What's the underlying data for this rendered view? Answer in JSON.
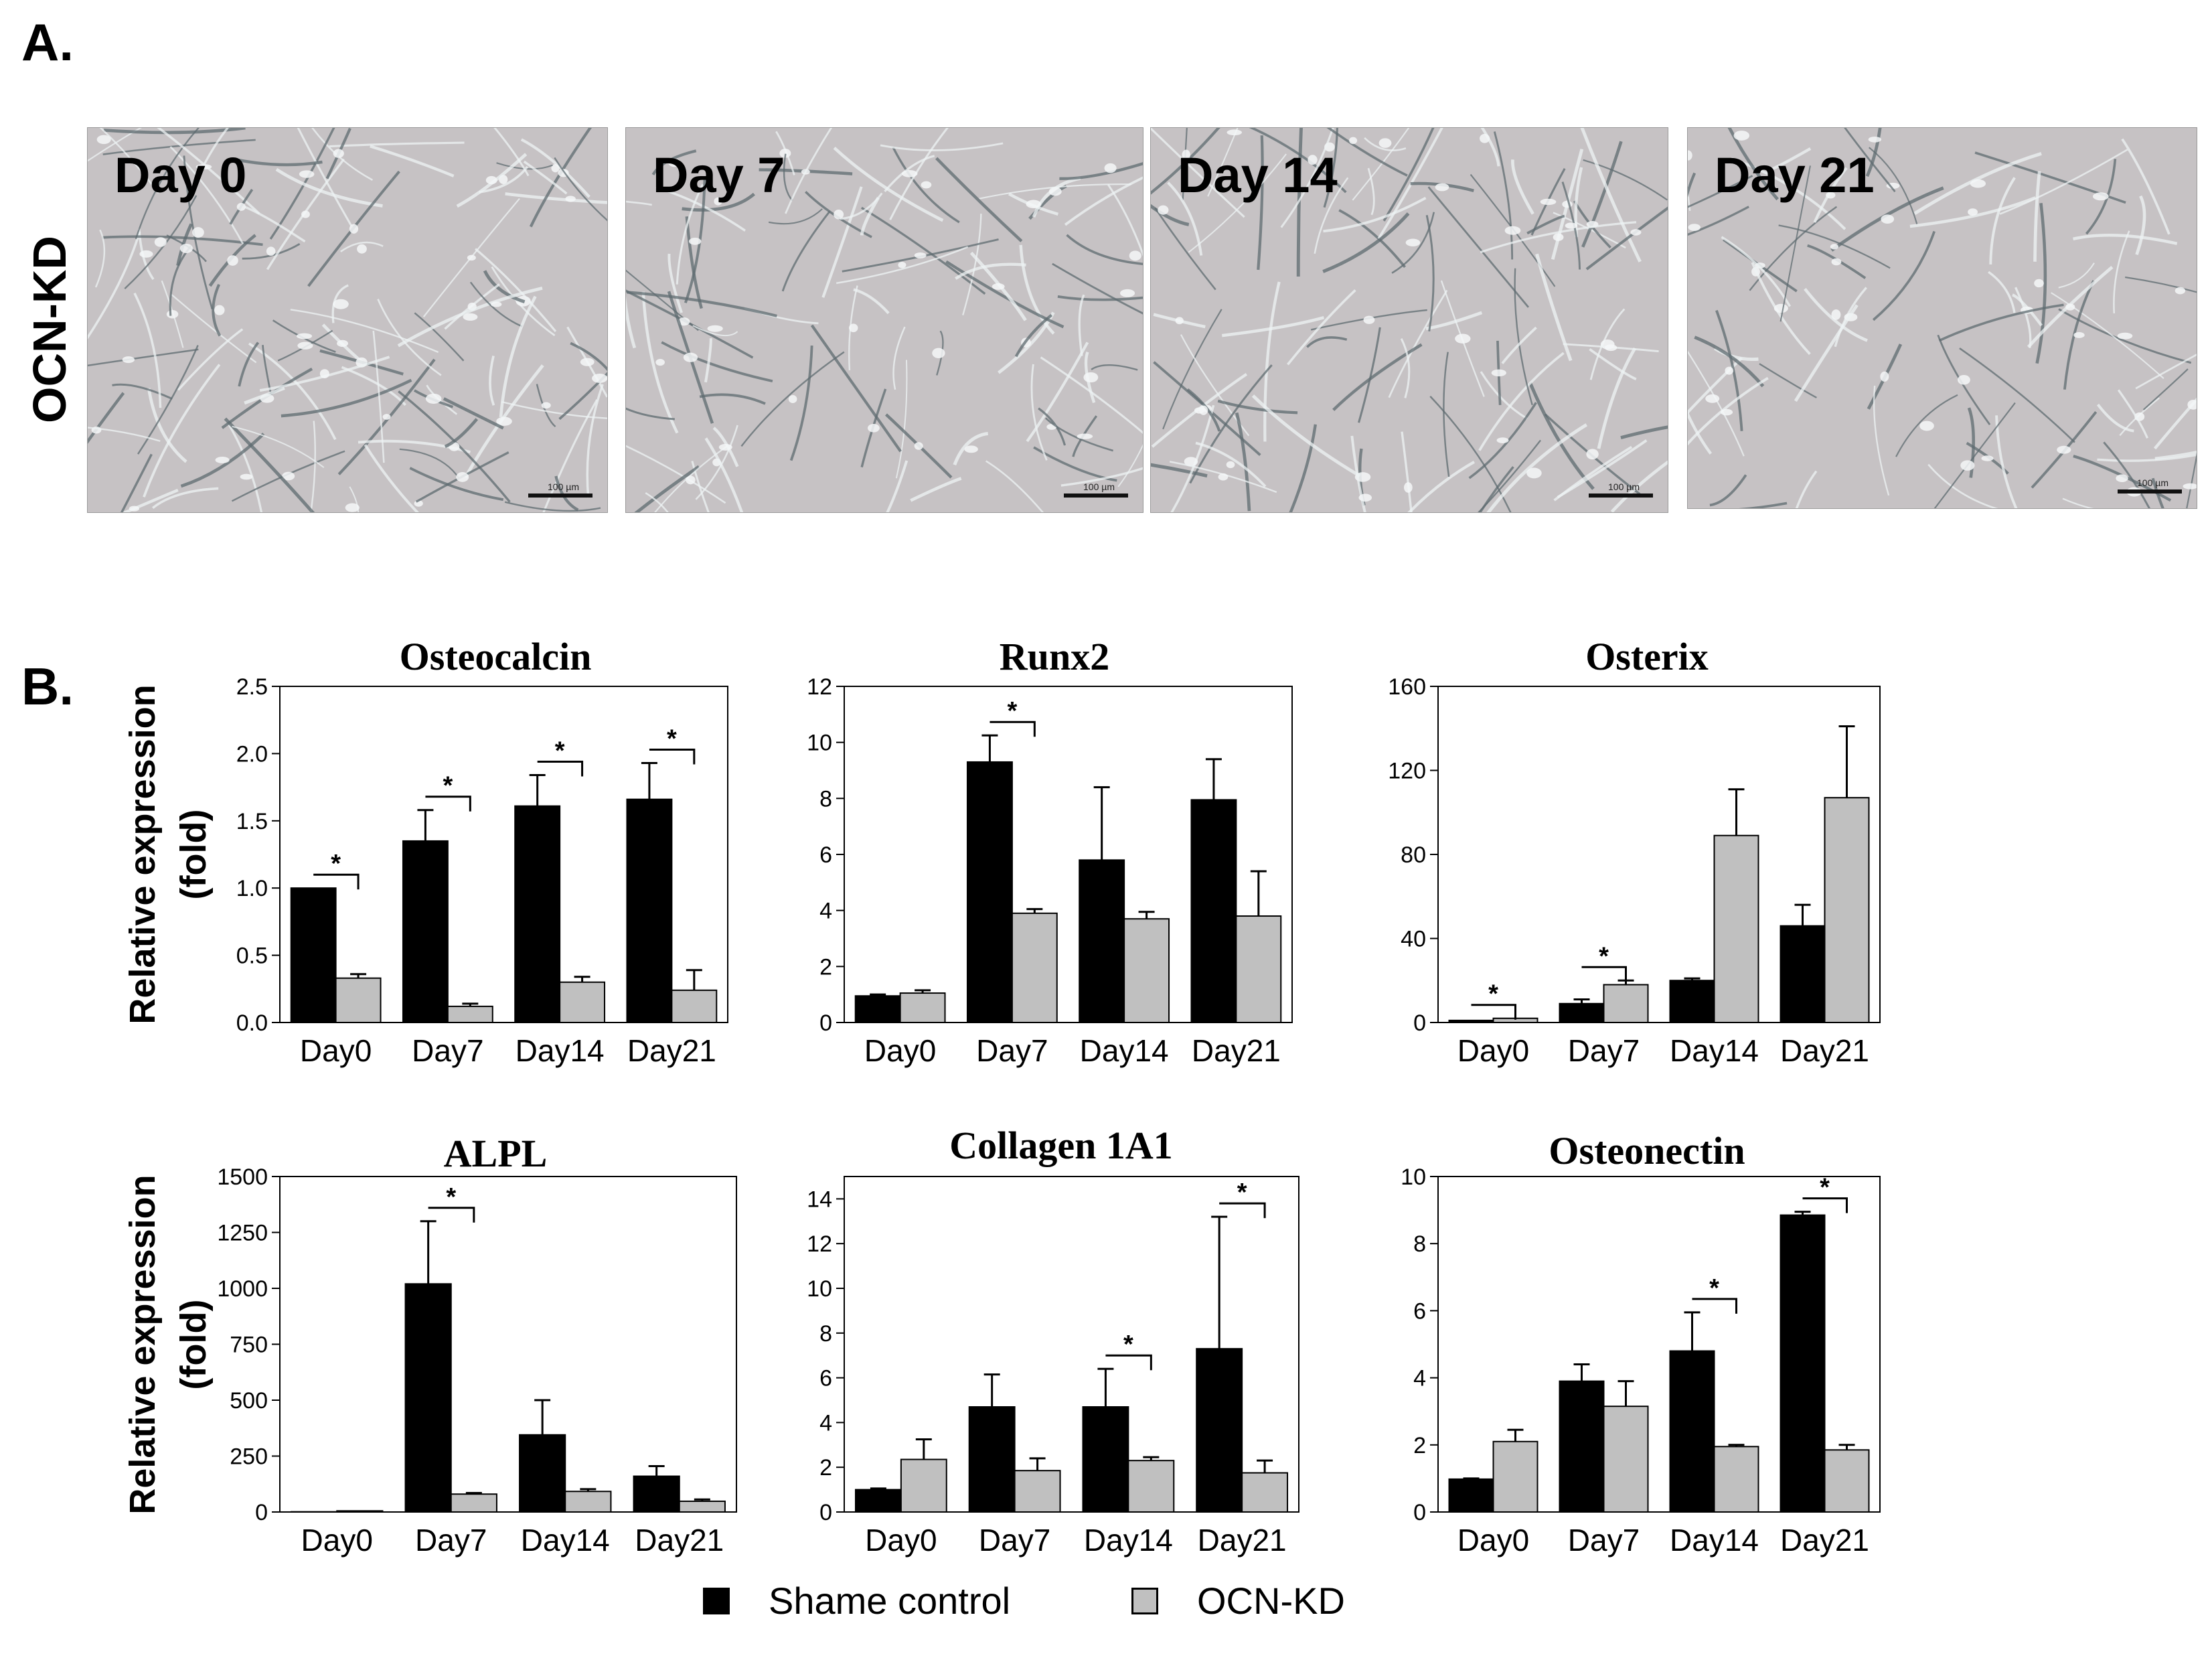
{
  "panels": {
    "a_label": "A.",
    "b_label": "B."
  },
  "micrographs": {
    "row_label": "OCN-KD",
    "images": [
      {
        "label": "Day 0",
        "scale": "100 µm"
      },
      {
        "label": "Day 7",
        "scale": "100 µm"
      },
      {
        "label": "Day 14",
        "scale": "100 µm"
      },
      {
        "label": "Day 21",
        "scale": "100 µm"
      }
    ]
  },
  "ylabel_line1": "Relative expression",
  "ylabel_line2": "(fold)",
  "legend": {
    "items": [
      {
        "label": "Shame control",
        "color": "#000000"
      },
      {
        "label": "OCN-KD",
        "color": "#c0c0c0"
      }
    ]
  },
  "chart_data": [
    {
      "type": "bar",
      "title": "Osteocalcin",
      "categories": [
        "Day0",
        "Day7",
        "Day14",
        "Day21"
      ],
      "ylim": [
        0,
        2.5
      ],
      "yticks": [
        "0.0",
        "0.5",
        "1.0",
        "1.5",
        "2.0",
        "2.5"
      ],
      "series": [
        {
          "name": "Shame control",
          "values": [
            1.0,
            1.35,
            1.61,
            1.66
          ],
          "errors": [
            0.0,
            0.23,
            0.23,
            0.27
          ]
        },
        {
          "name": "OCN-KD",
          "values": [
            0.33,
            0.12,
            0.3,
            0.24
          ],
          "errors": [
            0.03,
            0.02,
            0.04,
            0.15
          ]
        }
      ],
      "significance": [
        "*",
        "*",
        "*",
        "*"
      ]
    },
    {
      "type": "bar",
      "title": "Runx2",
      "categories": [
        "Day0",
        "Day7",
        "Day14",
        "Day21"
      ],
      "ylim": [
        0,
        12
      ],
      "yticks": [
        "0",
        "2",
        "4",
        "6",
        "8",
        "10",
        "12"
      ],
      "series": [
        {
          "name": "Shame control",
          "values": [
            0.95,
            9.3,
            5.8,
            7.95
          ],
          "errors": [
            0.05,
            0.95,
            2.6,
            1.45
          ]
        },
        {
          "name": "OCN-KD",
          "values": [
            1.05,
            3.9,
            3.7,
            3.8
          ],
          "errors": [
            0.1,
            0.15,
            0.25,
            1.6
          ]
        }
      ],
      "significance": [
        "",
        "*",
        "",
        ""
      ]
    },
    {
      "type": "bar",
      "title": "Osterix",
      "categories": [
        "Day0",
        "Day7",
        "Day14",
        "Day21"
      ],
      "ylim": [
        0,
        160
      ],
      "yticks": [
        "0",
        "40",
        "80",
        "120",
        "160"
      ],
      "series": [
        {
          "name": "Shame control",
          "values": [
            1,
            9,
            20,
            46
          ],
          "errors": [
            0,
            2,
            1,
            10
          ]
        },
        {
          "name": "OCN-KD",
          "values": [
            2,
            18,
            89,
            107
          ],
          "errors": [
            0,
            2,
            22,
            34
          ]
        }
      ],
      "significance": [
        "*",
        "*",
        "",
        ""
      ]
    },
    {
      "type": "bar",
      "title": "ALPL",
      "categories": [
        "Day0",
        "Day7",
        "Day14",
        "Day21"
      ],
      "ylim": [
        0,
        1500
      ],
      "yticks": [
        "0",
        "250",
        "500",
        "750",
        "1000",
        "1250",
        "1500"
      ],
      "series": [
        {
          "name": "Shame control",
          "values": [
            1,
            1020,
            345,
            160
          ],
          "errors": [
            0,
            280,
            155,
            45
          ]
        },
        {
          "name": "OCN-KD",
          "values": [
            5,
            80,
            92,
            48
          ],
          "errors": [
            0,
            5,
            10,
            8
          ]
        }
      ],
      "significance": [
        "",
        "*",
        "",
        ""
      ]
    },
    {
      "type": "bar",
      "title": "Collagen 1A1",
      "categories": [
        "Day0",
        "Day7",
        "Day14",
        "Day21"
      ],
      "ylim": [
        0,
        15
      ],
      "yticks": [
        "0",
        "2",
        "4",
        "6",
        "8",
        "10",
        "12",
        "14"
      ],
      "series": [
        {
          "name": "Shame control",
          "values": [
            1.0,
            4.7,
            4.7,
            7.3
          ],
          "errors": [
            0.05,
            1.45,
            1.7,
            5.9
          ]
        },
        {
          "name": "OCN-KD",
          "values": [
            2.35,
            1.85,
            2.3,
            1.75
          ],
          "errors": [
            0.9,
            0.55,
            0.15,
            0.55
          ]
        }
      ],
      "significance": [
        "",
        "",
        "*",
        "*"
      ]
    },
    {
      "type": "bar",
      "title": "Osteonectin",
      "categories": [
        "Day0",
        "Day7",
        "Day14",
        "Day21"
      ],
      "ylim": [
        0,
        10
      ],
      "yticks": [
        "0",
        "2",
        "4",
        "6",
        "8",
        "10"
      ],
      "series": [
        {
          "name": "Shame control",
          "values": [
            0.98,
            3.9,
            4.8,
            8.85
          ],
          "errors": [
            0.02,
            0.5,
            1.15,
            0.1
          ]
        },
        {
          "name": "OCN-KD",
          "values": [
            2.1,
            3.15,
            1.95,
            1.85
          ],
          "errors": [
            0.35,
            0.75,
            0.05,
            0.15
          ]
        }
      ],
      "significance": [
        "",
        "",
        "*",
        "*"
      ]
    }
  ]
}
